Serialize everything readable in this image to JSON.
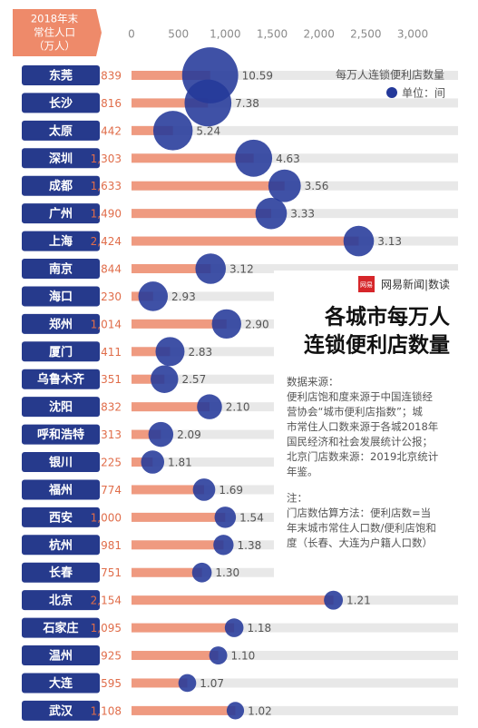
{
  "chart_data": {
    "type": "bar-bubble",
    "header_lines": [
      "2018年末",
      "常住人口",
      "（万人）"
    ],
    "categories": [
      "东莞",
      "长沙",
      "太原",
      "深圳",
      "成都",
      "广州",
      "上海",
      "南京",
      "海口",
      "郑州",
      "厦门",
      "乌鲁木齐",
      "沈阳",
      "呼和浩特",
      "银川",
      "福州",
      "西安",
      "杭州",
      "长春",
      "北京",
      "石家庄",
      "温州",
      "大连",
      "武汉"
    ],
    "series": [
      {
        "color": "#ef9a80",
        "values": [
          839,
          816,
          442,
          1303,
          1633,
          1490,
          2424,
          844,
          230,
          1014,
          411,
          351,
          832,
          313,
          225,
          774,
          1000,
          981,
          751,
          2154,
          1095,
          925,
          595,
          1108
        ],
        "value_labels": [
          "839",
          "816",
          "442",
          "1,303",
          "1,633",
          "1,490",
          "2,424",
          "844",
          "230",
          "1,014",
          "411",
          "351",
          "832",
          "313",
          "225",
          "774",
          "1,000",
          "981",
          "751",
          "2,154",
          "1,095",
          "925",
          "595",
          "1,108"
        ]
      },
      {
        "name": "每万人连锁便利店数量",
        "color": "#24399a",
        "values": [
          10.59,
          7.38,
          5.24,
          4.63,
          3.56,
          3.33,
          3.13,
          3.12,
          2.93,
          2.9,
          2.83,
          2.57,
          2.1,
          2.09,
          1.81,
          1.69,
          1.54,
          1.38,
          1.3,
          1.21,
          1.18,
          1.1,
          1.07,
          1.02
        ],
        "value_labels": [
          "10.59",
          "7.38",
          "5.24",
          "4.63",
          "3.56",
          "3.33",
          "3.13",
          "3.12",
          "2.93",
          "2.90",
          "2.83",
          "2.57",
          "2.10",
          "2.09",
          "1.81",
          "1.69",
          "1.54",
          "1.38",
          "1.30",
          "1.21",
          "1.18",
          "1.10",
          "1.07",
          "1.02"
        ]
      }
    ],
    "legend_unit": "单位：间",
    "xlim": [
      0,
      3000
    ],
    "xticks": [
      0,
      500,
      {
        "value": 1000,
        "label": "1,000"
      },
      {
        "value": 1500,
        "label": "1,500"
      },
      {
        "value": 2000,
        "label": "2,000"
      },
      {
        "value": 2500,
        "label": "2,500"
      },
      {
        "value": 3000,
        "label": "3,000"
      }
    ],
    "logo": "网易",
    "brand": "网易新闻|数读",
    "title_lines": [
      "各城市每万人",
      "连锁便利店数量"
    ],
    "source_lines": [
      "数据来源：",
      "便利店饱和度来源于中国连锁经",
      "营协会“城市便利店指数”；城",
      "市常住人口数来源于各城2018年",
      "国民经济和社会发展统计公报；",
      "北京门店数来源：2019北京统计",
      "年鉴。"
    ],
    "note_lines": [
      "注：",
      "门店数估算方法：便利店数=当",
      "年末城市常住人口数/便利店饱和",
      "度（长春、大连为户籍人口数）"
    ]
  }
}
